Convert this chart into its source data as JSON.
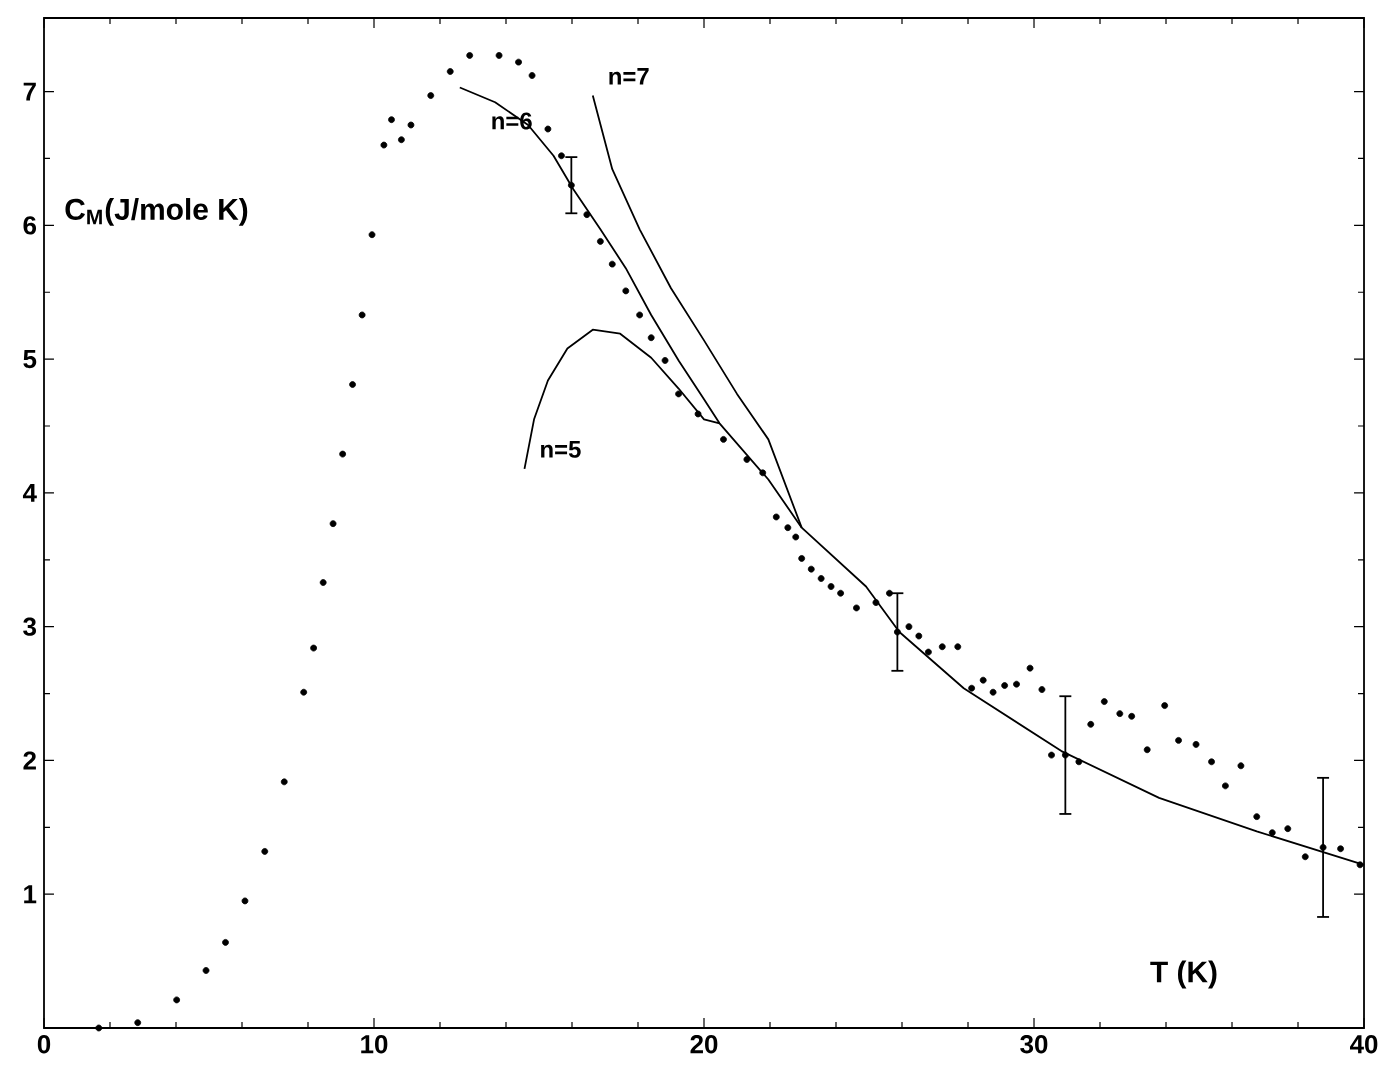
{
  "chart_data": {
    "type": "scatter",
    "xlabel": "T (K)",
    "ylabel": "C$_{M}$(J/mole K)",
    "xlim": [
      0,
      40
    ],
    "ylim": [
      0,
      7.55
    ],
    "xticks": [
      0,
      10,
      20,
      30,
      40
    ],
    "yticks": [
      1,
      2,
      3,
      4,
      5,
      6,
      7
    ],
    "marker": "circle",
    "series": [
      {
        "color": "#000000",
        "x": [
          1.66,
          2.84,
          4.02,
          4.91,
          5.5,
          6.09,
          6.69,
          7.28,
          7.87,
          8.17,
          8.46,
          8.76,
          9.05,
          9.35,
          9.64,
          9.94,
          10.3,
          10.53,
          10.83,
          11.12,
          11.72,
          12.31,
          12.9,
          13.79,
          14.38,
          14.79,
          15.27,
          15.68,
          16.45,
          16.86,
          17.22,
          17.63,
          18.05,
          18.4,
          18.82,
          19.23,
          19.82,
          20.59,
          21.3,
          21.78,
          22.19,
          22.54,
          22.78,
          22.96,
          23.25,
          23.55,
          23.85,
          24.14,
          24.62,
          25.21,
          25.62,
          26.21,
          26.51,
          26.8,
          27.22,
          27.69,
          28.11,
          28.46,
          28.76,
          29.11,
          29.47,
          29.88,
          30.24,
          30.53,
          31.36,
          31.72,
          32.13,
          32.6,
          32.96,
          33.43,
          33.96,
          34.38,
          34.91,
          35.38,
          35.8,
          36.27,
          36.75,
          37.22,
          37.69,
          38.22,
          39.29,
          39.88
        ],
        "values": [
          0.0,
          0.04,
          0.21,
          0.43,
          0.64,
          0.95,
          1.32,
          1.84,
          2.51,
          2.84,
          3.33,
          3.77,
          4.29,
          4.81,
          5.33,
          5.93,
          6.6,
          6.79,
          6.64,
          6.75,
          6.97,
          7.15,
          7.27,
          7.27,
          7.22,
          7.12,
          6.72,
          6.52,
          6.08,
          5.88,
          5.71,
          5.51,
          5.33,
          5.16,
          4.99,
          4.74,
          4.59,
          4.4,
          4.25,
          4.15,
          3.82,
          3.74,
          3.67,
          3.51,
          3.43,
          3.36,
          3.3,
          3.25,
          3.14,
          3.18,
          3.25,
          3.0,
          2.93,
          2.81,
          2.85,
          2.85,
          2.54,
          2.6,
          2.51,
          2.56,
          2.57,
          2.69,
          2.53,
          2.04,
          1.99,
          2.27,
          2.44,
          2.35,
          2.33,
          2.08,
          2.41,
          2.15,
          2.12,
          1.99,
          1.81,
          1.96,
          1.58,
          1.46,
          1.49,
          1.28,
          1.34,
          1.22
        ]
      },
      {
        "color": "#000000",
        "x": [
          15.98,
          25.86,
          30.95,
          38.76
        ],
        "values": [
          6.3,
          2.96,
          2.04,
          1.35
        ],
        "errors": [
          0.21,
          0.29,
          0.44,
          0.52
        ]
      },
      {
        "type": "line",
        "name": "n=5",
        "color": "#000000",
        "marker": "none",
        "x": [
          14.56,
          14.85,
          15.27,
          15.86,
          16.63,
          17.46,
          18.4,
          19.23,
          20.0,
          20.47
        ],
        "values": [
          4.18,
          4.55,
          4.84,
          5.08,
          5.22,
          5.19,
          5.01,
          4.78,
          4.55,
          4.52
        ]
      },
      {
        "type": "line",
        "name": "n=6",
        "color": "#000000",
        "marker": "none",
        "x": [
          12.6,
          13.67,
          14.67,
          15.44,
          16.04,
          16.86,
          17.63,
          18.4,
          19.23,
          20.0,
          20.47,
          21.95,
          22.96,
          24.91,
          25.92,
          27.87,
          30.83,
          33.79,
          36.75,
          40.0
        ],
        "values": [
          7.03,
          6.92,
          6.75,
          6.52,
          6.27,
          5.97,
          5.68,
          5.33,
          4.99,
          4.7,
          4.52,
          4.1,
          3.74,
          3.3,
          2.96,
          2.54,
          2.07,
          1.72,
          1.47,
          1.22
        ]
      },
      {
        "type": "line",
        "name": "n=7",
        "color": "#000000",
        "marker": "none",
        "x": [
          16.63,
          17.22,
          18.05,
          19.0,
          20.0,
          21.0,
          21.95,
          22.96
        ],
        "values": [
          6.97,
          6.42,
          5.97,
          5.53,
          5.14,
          4.74,
          4.4,
          3.74
        ]
      }
    ]
  }
}
